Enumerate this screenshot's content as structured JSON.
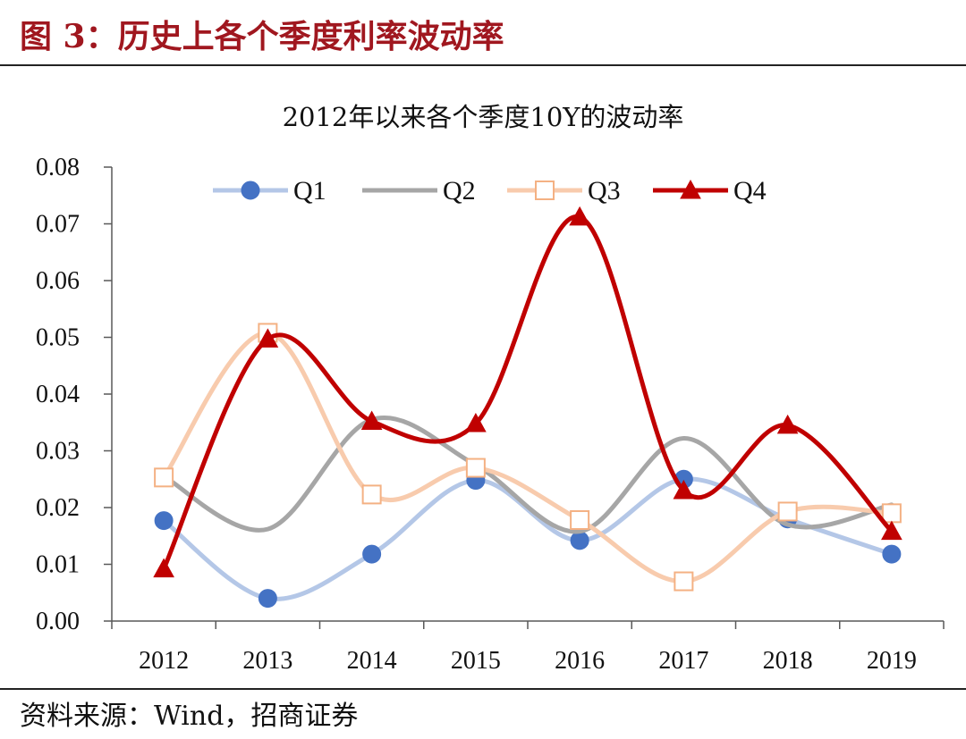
{
  "figure": {
    "title": "图 3：历史上各个季度利率波动率",
    "source": "资料来源：Wind，招商证券"
  },
  "chart_data": {
    "type": "line",
    "title": "2012年以来各个季度10Y的波动率",
    "xlabel": "",
    "ylabel": "",
    "categories": [
      "2012",
      "2013",
      "2014",
      "2015",
      "2016",
      "2017",
      "2018",
      "2019"
    ],
    "ylim": [
      0,
      0.08
    ],
    "yticks": [
      "0.00",
      "0.01",
      "0.02",
      "0.03",
      "0.04",
      "0.05",
      "0.06",
      "0.07",
      "0.08"
    ],
    "grid": false,
    "legend_position": "top",
    "smooth": true,
    "series": [
      {
        "name": "Q1",
        "color": "#b4c7e7",
        "marker": "circle",
        "marker_color": "#4472c4",
        "values": [
          0.0177,
          0.004,
          0.0118,
          0.0248,
          0.0142,
          0.025,
          0.018,
          0.0118
        ]
      },
      {
        "name": "Q2",
        "color": "#a6a6a6",
        "marker": "none",
        "values": [
          0.0255,
          0.0162,
          0.0355,
          0.0275,
          0.0158,
          0.0322,
          0.017,
          0.0205
        ]
      },
      {
        "name": "Q3",
        "color": "#f8cbad",
        "marker": "open-square",
        "marker_color": "#f4b183",
        "values": [
          0.0253,
          0.0508,
          0.0223,
          0.027,
          0.0178,
          0.007,
          0.0193,
          0.019
        ]
      },
      {
        "name": "Q4",
        "color": "#c00000",
        "marker": "triangle",
        "marker_color": "#c00000",
        "values": [
          0.0092,
          0.0497,
          0.0352,
          0.0348,
          0.0712,
          0.023,
          0.0345,
          0.0158
        ]
      }
    ]
  }
}
